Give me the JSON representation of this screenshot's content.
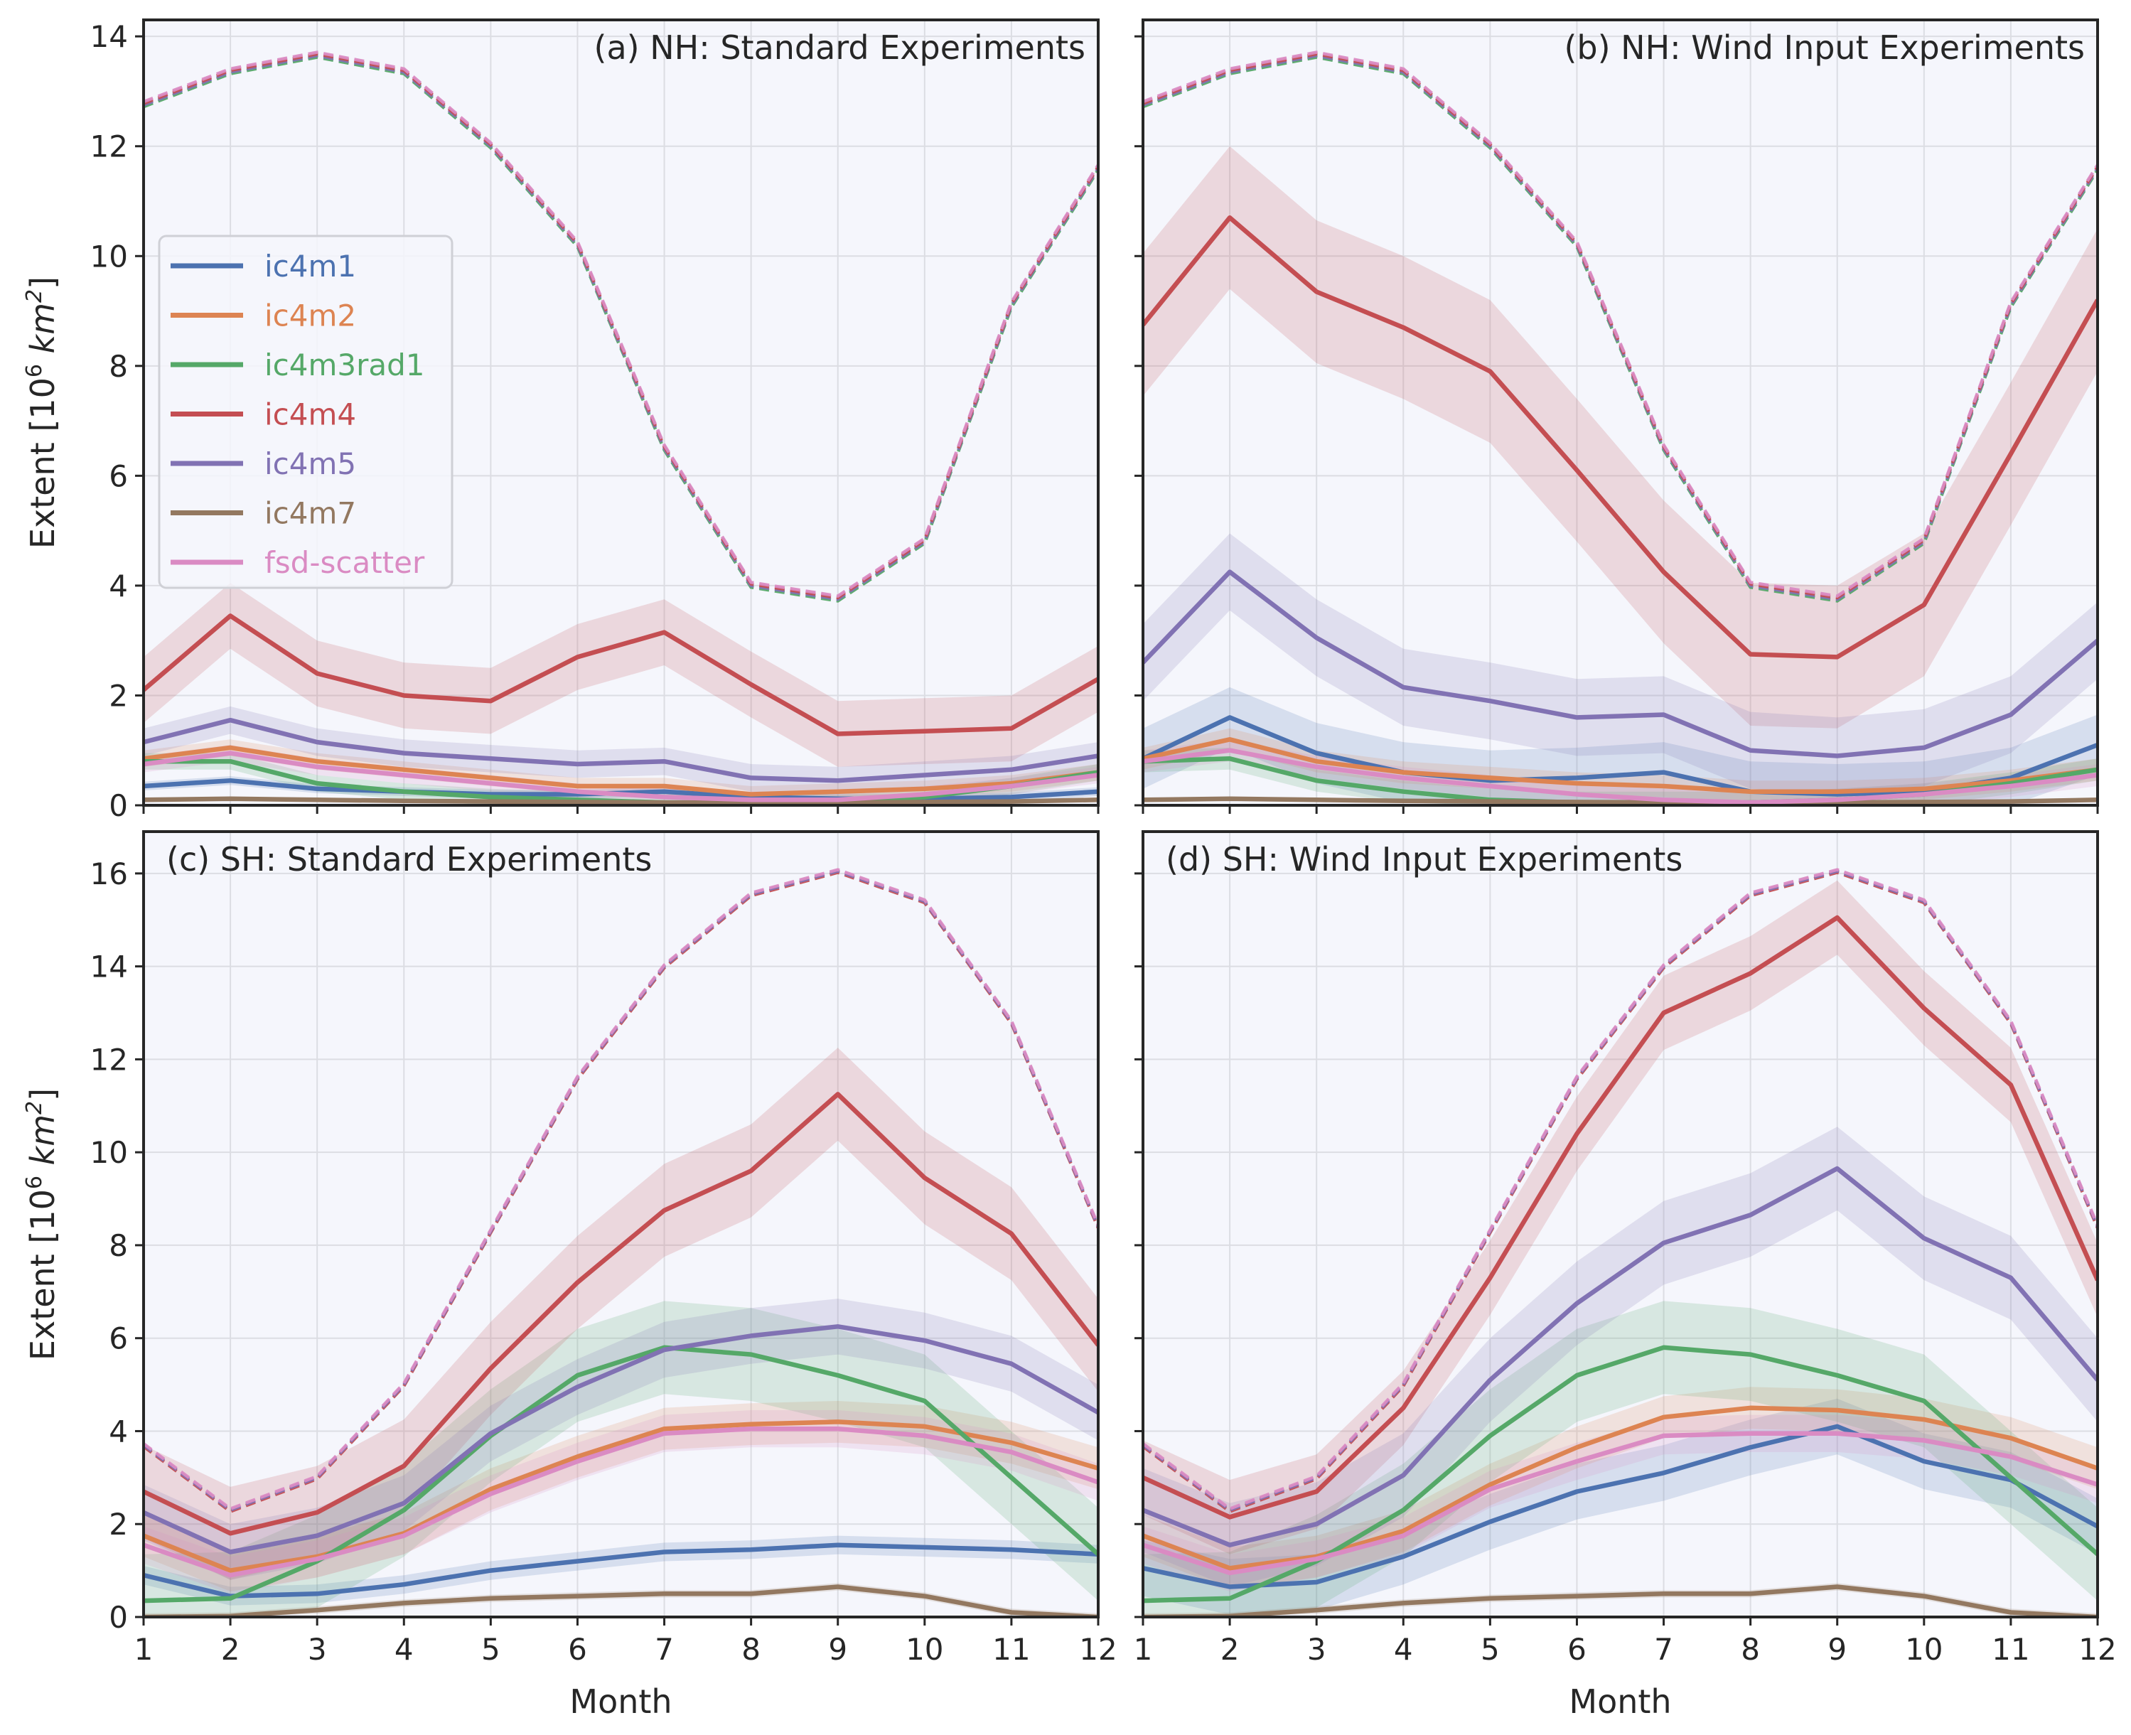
{
  "figure": {
    "ylabel_prefix": "Extent [10",
    "ylabel_sup": "6",
    "ylabel_unit": "km",
    "ylabel_unit_sup": "2",
    "ylabel_suffix": "]",
    "xlabel": "Month"
  },
  "colors": {
    "ic4m1": "#4c72b0",
    "ic4m2": "#dd8452",
    "ic4m3rad1": "#55a868",
    "ic4m4": "#c44e52",
    "ic4m5": "#8172b3",
    "ic4m7": "#937860",
    "fsd-scatter": "#da8bc3",
    "panel_bg": "#f5f6fc",
    "grid": "#dcdde3"
  },
  "legend": {
    "location": "upper-left of panel (a)",
    "entries": [
      "ic4m1",
      "ic4m2",
      "ic4m3rad1",
      "ic4m4",
      "ic4m5",
      "ic4m7",
      "fsd-scatter"
    ]
  },
  "chart_data": [
    {
      "type": "line",
      "title": "(a)  NH: Standard Experiments",
      "xlabel": "",
      "ylabel": "Extent [10^6 km^2]",
      "x": [
        1,
        2,
        3,
        4,
        5,
        6,
        7,
        8,
        9,
        10,
        11,
        12
      ],
      "xlim": [
        1,
        12
      ],
      "ylim": [
        0,
        14.3
      ],
      "yticks": [
        0,
        2,
        4,
        6,
        8,
        10,
        12,
        14
      ],
      "grid": true,
      "dashed_reference": {
        "note": "Dashed lines (total extent) for each experiment, overlapping",
        "colors": [
          "ic4m3rad1",
          "ic4m5",
          "ic4m4",
          "fsd-scatter"
        ],
        "values": [
          12.75,
          13.35,
          13.65,
          13.35,
          12.0,
          10.2,
          6.5,
          4.0,
          3.75,
          4.8,
          9.1,
          11.6
        ]
      },
      "series": [
        {
          "name": "ic4m1",
          "values": [
            0.35,
            0.45,
            0.3,
            0.25,
            0.2,
            0.2,
            0.25,
            0.15,
            0.12,
            0.12,
            0.15,
            0.25
          ],
          "band": 0.08
        },
        {
          "name": "ic4m2",
          "values": [
            0.85,
            1.05,
            0.8,
            0.65,
            0.5,
            0.35,
            0.35,
            0.2,
            0.25,
            0.3,
            0.4,
            0.6
          ],
          "band": 0.15
        },
        {
          "name": "ic4m3rad1",
          "values": [
            0.8,
            0.8,
            0.4,
            0.25,
            0.15,
            0.1,
            0.05,
            0.05,
            0.05,
            0.15,
            0.35,
            0.6
          ],
          "band": 0.15
        },
        {
          "name": "ic4m4",
          "values": [
            2.1,
            3.45,
            2.4,
            2.0,
            1.9,
            2.7,
            3.15,
            2.2,
            1.3,
            1.35,
            1.4,
            2.3
          ],
          "band": 0.6
        },
        {
          "name": "ic4m5",
          "values": [
            1.15,
            1.55,
            1.15,
            0.95,
            0.85,
            0.75,
            0.8,
            0.5,
            0.45,
            0.55,
            0.65,
            0.9
          ],
          "band": 0.25
        },
        {
          "name": "ic4m7",
          "values": [
            0.1,
            0.12,
            0.1,
            0.08,
            0.07,
            0.06,
            0.05,
            0.05,
            0.05,
            0.06,
            0.07,
            0.1
          ],
          "band": 0.03
        },
        {
          "name": "fsd-scatter",
          "values": [
            0.75,
            0.95,
            0.7,
            0.55,
            0.4,
            0.25,
            0.15,
            0.1,
            0.1,
            0.2,
            0.35,
            0.55
          ],
          "band": 0.15
        }
      ]
    },
    {
      "type": "line",
      "title": "(b)  NH: Wind Input Experiments",
      "xlabel": "",
      "ylabel": "",
      "x": [
        1,
        2,
        3,
        4,
        5,
        6,
        7,
        8,
        9,
        10,
        11,
        12
      ],
      "xlim": [
        1,
        12
      ],
      "ylim": [
        0,
        14.3
      ],
      "yticks": [
        0,
        2,
        4,
        6,
        8,
        10,
        12,
        14
      ],
      "grid": true,
      "dashed_reference": {
        "note": "Dashed lines (total extent) for each experiment, overlapping",
        "colors": [
          "ic4m3rad1",
          "ic4m5",
          "ic4m4",
          "fsd-scatter"
        ],
        "values": [
          12.75,
          13.35,
          13.65,
          13.35,
          12.0,
          10.2,
          6.5,
          4.0,
          3.75,
          4.8,
          9.1,
          11.6
        ]
      },
      "series": [
        {
          "name": "ic4m1",
          "values": [
            0.85,
            1.6,
            0.95,
            0.6,
            0.45,
            0.5,
            0.6,
            0.25,
            0.2,
            0.25,
            0.5,
            1.1
          ],
          "band": 0.55
        },
        {
          "name": "ic4m2",
          "values": [
            0.85,
            1.2,
            0.8,
            0.6,
            0.5,
            0.4,
            0.35,
            0.25,
            0.25,
            0.3,
            0.45,
            0.65
          ],
          "band": 0.2
        },
        {
          "name": "ic4m3rad1",
          "values": [
            0.8,
            0.85,
            0.45,
            0.25,
            0.1,
            0.05,
            0.05,
            0.05,
            0.1,
            0.2,
            0.4,
            0.65
          ],
          "band": 0.2
        },
        {
          "name": "ic4m4",
          "values": [
            8.75,
            10.7,
            9.35,
            8.7,
            7.9,
            6.1,
            4.25,
            2.75,
            2.7,
            3.65,
            6.4,
            9.2
          ],
          "band": 1.3
        },
        {
          "name": "ic4m5",
          "values": [
            2.6,
            4.25,
            3.05,
            2.15,
            1.9,
            1.6,
            1.65,
            1.0,
            0.9,
            1.05,
            1.65,
            3.0
          ],
          "band": 0.7
        },
        {
          "name": "ic4m7",
          "values": [
            0.1,
            0.12,
            0.1,
            0.08,
            0.07,
            0.06,
            0.05,
            0.05,
            0.05,
            0.06,
            0.07,
            0.1
          ],
          "band": 0.03
        },
        {
          "name": "fsd-scatter",
          "values": [
            0.8,
            1.0,
            0.7,
            0.5,
            0.35,
            0.2,
            0.1,
            0.05,
            0.1,
            0.2,
            0.35,
            0.55
          ],
          "band": 0.2
        }
      ]
    },
    {
      "type": "line",
      "title": "(c)  SH: Standard Experiments",
      "xlabel": "Month",
      "ylabel": "Extent [10^6 km^2]",
      "x": [
        1,
        2,
        3,
        4,
        5,
        6,
        7,
        8,
        9,
        10,
        11,
        12
      ],
      "xlim": [
        1,
        12
      ],
      "ylim": [
        0,
        16.9
      ],
      "yticks": [
        0,
        2,
        4,
        6,
        8,
        10,
        12,
        14,
        16
      ],
      "grid": true,
      "dashed_reference": {
        "note": "Dashed lines (total extent) for each experiment, overlapping",
        "colors": [
          "ic4m4",
          "ic4m5",
          "fsd-scatter"
        ],
        "values": [
          3.7,
          2.3,
          3.0,
          5.0,
          8.3,
          11.6,
          14.0,
          15.55,
          16.05,
          15.4,
          12.8,
          8.4
        ]
      },
      "series": [
        {
          "name": "ic4m1",
          "values": [
            0.9,
            0.45,
            0.5,
            0.7,
            1.0,
            1.2,
            1.4,
            1.45,
            1.55,
            1.5,
            1.45,
            1.35
          ],
          "band": 0.2
        },
        {
          "name": "ic4m2",
          "values": [
            1.75,
            1.0,
            1.3,
            1.8,
            2.75,
            3.45,
            4.05,
            4.15,
            4.2,
            4.1,
            3.75,
            3.2
          ],
          "band": 0.45
        },
        {
          "name": "ic4m3rad1",
          "values": [
            0.35,
            0.4,
            1.2,
            2.3,
            3.9,
            5.2,
            5.8,
            5.65,
            5.2,
            4.65,
            3.0,
            1.35
          ],
          "band": 1.0
        },
        {
          "name": "ic4m4",
          "values": [
            2.7,
            1.8,
            2.25,
            3.25,
            5.35,
            7.2,
            8.75,
            9.6,
            11.25,
            9.45,
            8.25,
            5.85
          ],
          "band": 1.0
        },
        {
          "name": "ic4m5",
          "values": [
            2.25,
            1.4,
            1.75,
            2.45,
            3.95,
            4.95,
            5.75,
            6.05,
            6.25,
            5.95,
            5.45,
            4.4
          ],
          "band": 0.6
        },
        {
          "name": "ic4m7",
          "values": [
            0.0,
            0.02,
            0.15,
            0.3,
            0.4,
            0.45,
            0.5,
            0.5,
            0.65,
            0.45,
            0.1,
            0.0
          ],
          "band": 0.08
        },
        {
          "name": "fsd-scatter",
          "values": [
            1.55,
            0.9,
            1.25,
            1.75,
            2.65,
            3.35,
            3.95,
            4.05,
            4.05,
            3.9,
            3.55,
            2.9
          ],
          "band": 0.4
        }
      ]
    },
    {
      "type": "line",
      "title": "(d)  SH: Wind Input Experiments",
      "xlabel": "Month",
      "ylabel": "",
      "x": [
        1,
        2,
        3,
        4,
        5,
        6,
        7,
        8,
        9,
        10,
        11,
        12
      ],
      "xlim": [
        1,
        12
      ],
      "ylim": [
        0,
        16.9
      ],
      "yticks": [
        0,
        2,
        4,
        6,
        8,
        10,
        12,
        14,
        16
      ],
      "grid": true,
      "dashed_reference": {
        "note": "Dashed lines (total extent) for each experiment, overlapping",
        "colors": [
          "ic4m4",
          "ic4m5",
          "fsd-scatter"
        ],
        "values": [
          3.7,
          2.3,
          3.0,
          5.0,
          8.3,
          11.6,
          14.0,
          15.55,
          16.05,
          15.4,
          12.8,
          8.4
        ]
      },
      "series": [
        {
          "name": "ic4m1",
          "values": [
            1.05,
            0.65,
            0.75,
            1.3,
            2.05,
            2.7,
            3.1,
            3.65,
            4.1,
            3.35,
            2.95,
            1.95
          ],
          "band": 0.6
        },
        {
          "name": "ic4m2",
          "values": [
            1.75,
            1.05,
            1.3,
            1.85,
            2.85,
            3.65,
            4.3,
            4.5,
            4.45,
            4.25,
            3.85,
            3.2
          ],
          "band": 0.45
        },
        {
          "name": "ic4m3rad1",
          "values": [
            0.35,
            0.4,
            1.2,
            2.3,
            3.9,
            5.2,
            5.8,
            5.65,
            5.2,
            4.65,
            3.0,
            1.35
          ],
          "band": 1.0
        },
        {
          "name": "ic4m4",
          "values": [
            3.0,
            2.15,
            2.7,
            4.5,
            7.3,
            10.4,
            13.0,
            13.85,
            15.05,
            13.1,
            11.45,
            7.25
          ],
          "band": 0.8
        },
        {
          "name": "ic4m5",
          "values": [
            2.3,
            1.55,
            2.0,
            3.05,
            5.1,
            6.75,
            8.05,
            8.65,
            9.65,
            8.15,
            7.3,
            5.1
          ],
          "band": 0.9
        },
        {
          "name": "ic4m7",
          "values": [
            0.0,
            0.02,
            0.15,
            0.3,
            0.4,
            0.45,
            0.5,
            0.5,
            0.65,
            0.45,
            0.1,
            0.0
          ],
          "band": 0.08
        },
        {
          "name": "fsd-scatter",
          "values": [
            1.55,
            0.95,
            1.25,
            1.75,
            2.75,
            3.35,
            3.9,
            3.95,
            3.95,
            3.8,
            3.45,
            2.85
          ],
          "band": 0.4
        }
      ]
    }
  ]
}
